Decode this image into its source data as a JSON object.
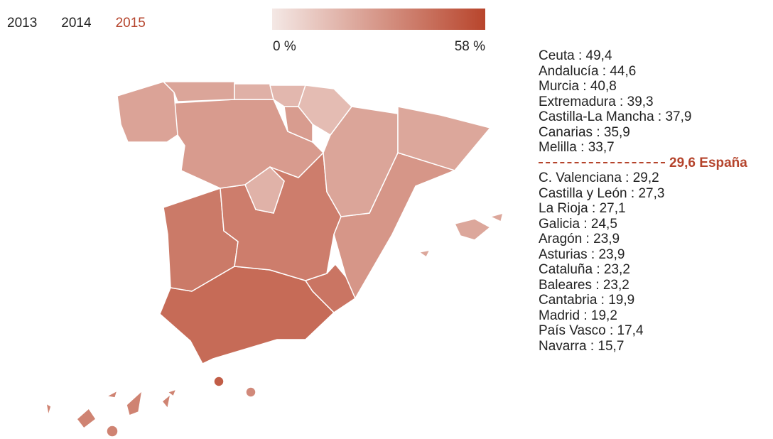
{
  "years": {
    "items": [
      "2013",
      "2014",
      "2015"
    ],
    "selected_index": 2
  },
  "legend": {
    "min": 0,
    "max": 58,
    "min_label": "0 %",
    "max_label": "58 %",
    "low_color": "#f4e8e5",
    "high_color": "#b8452c"
  },
  "average": {
    "name": "España",
    "value": 29.6,
    "value_label": "29,6",
    "color": "#b5442c"
  },
  "regions": [
    {
      "name": "Ceuta",
      "value": 49.4,
      "value_label": "49,4"
    },
    {
      "name": "Andalucía",
      "value": 44.6,
      "value_label": "44,6"
    },
    {
      "name": "Murcia",
      "value": 40.8,
      "value_label": "40,8"
    },
    {
      "name": "Extremadura",
      "value": 39.3,
      "value_label": "39,3"
    },
    {
      "name": "Castilla-La Mancha",
      "value": 37.9,
      "value_label": "37,9"
    },
    {
      "name": "Canarias",
      "value": 35.9,
      "value_label": "35,9"
    },
    {
      "name": "Melilla",
      "value": 33.7,
      "value_label": "33,7"
    },
    {
      "name": "C. Valenciana",
      "value": 29.2,
      "value_label": "29,2"
    },
    {
      "name": "Castilla y León",
      "value": 27.3,
      "value_label": "27,3"
    },
    {
      "name": "La Rioja",
      "value": 27.1,
      "value_label": "27,1"
    },
    {
      "name": "Galicia",
      "value": 24.5,
      "value_label": "24,5"
    },
    {
      "name": "Aragón",
      "value": 23.9,
      "value_label": "23,9"
    },
    {
      "name": "Asturias",
      "value": 23.9,
      "value_label": "23,9"
    },
    {
      "name": "Cataluña",
      "value": 23.2,
      "value_label": "23,2"
    },
    {
      "name": "Baleares",
      "value": 23.2,
      "value_label": "23,2"
    },
    {
      "name": "Cantabria",
      "value": 19.9,
      "value_label": "19,9"
    },
    {
      "name": "Madrid",
      "value": 19.2,
      "value_label": "19,2"
    },
    {
      "name": "País Vasco",
      "value": 17.4,
      "value_label": "17,4"
    },
    {
      "name": "Navarra",
      "value": 15.7,
      "value_label": "15,7"
    }
  ]
}
